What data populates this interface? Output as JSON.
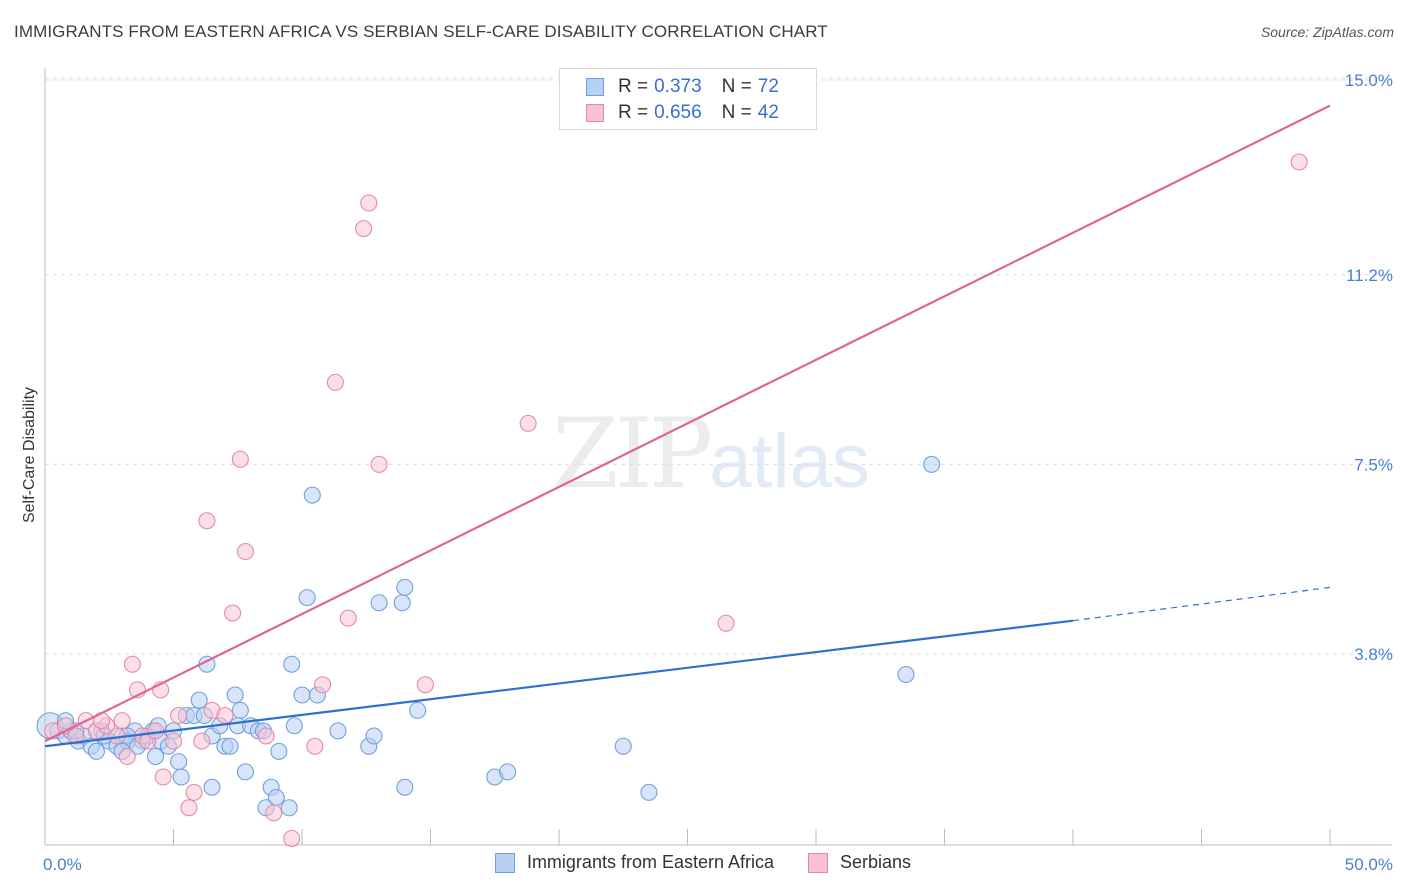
{
  "title": "IMMIGRANTS FROM EASTERN AFRICA VS SERBIAN SELF-CARE DISABILITY CORRELATION CHART",
  "source": "Source: ZipAtlas.com",
  "watermark": {
    "zip": "ZIP",
    "atlas": "atlas"
  },
  "legend_top": {
    "rows": [
      {
        "r_label": "R =",
        "r_value": "0.373",
        "n_label": "N =",
        "n_value": "72"
      },
      {
        "r_label": "R =",
        "r_value": "0.656",
        "n_label": "N =",
        "n_value": "42"
      }
    ]
  },
  "legend_bottom": [
    {
      "label": "Immigrants from Eastern Africa"
    },
    {
      "label": "Serbians"
    }
  ],
  "chart_data": {
    "type": "scatter",
    "title": "IMMIGRANTS FROM EASTERN AFRICA VS SERBIAN SELF-CARE DISABILITY CORRELATION CHART",
    "xlabel": "",
    "ylabel": "Self-Care Disability",
    "xlim": [
      0,
      50
    ],
    "ylim": [
      0,
      15.5
    ],
    "x_tick_labels": [
      {
        "value": 0,
        "label": "0.0%"
      },
      {
        "value": 50,
        "label": "50.0%"
      }
    ],
    "y_tick_labels": [
      {
        "value": 3.8,
        "label": "3.8%"
      },
      {
        "value": 7.5,
        "label": "7.5%"
      },
      {
        "value": 11.2,
        "label": "11.2%"
      },
      {
        "value": 15.0,
        "label": "15.0%"
      }
    ],
    "grid": "horizontal dashed",
    "legend_position": "top-center",
    "series": [
      {
        "name": "Immigrants from Eastern Africa",
        "color": "#6f9fe0",
        "fill": "#b8d0f2",
        "R": 0.373,
        "N": 72,
        "trend": {
          "x0": 0,
          "y0": 2.0,
          "x1": 40,
          "y1": 4.45,
          "dashed_to_x": 50,
          "dashed_to_y": 5.1,
          "color": "#2e6fd0"
        },
        "points": [
          [
            0.2,
            2.4
          ],
          [
            0.5,
            2.3
          ],
          [
            0.8,
            2.2
          ],
          [
            1.0,
            2.3
          ],
          [
            1.3,
            2.1
          ],
          [
            1.5,
            2.2
          ],
          [
            1.8,
            2.0
          ],
          [
            2.0,
            1.9
          ],
          [
            2.2,
            2.3
          ],
          [
            2.5,
            2.1
          ],
          [
            2.8,
            2.0
          ],
          [
            3.0,
            2.2
          ],
          [
            3.2,
            2.1
          ],
          [
            3.5,
            2.3
          ],
          [
            3.2,
            2.2
          ],
          [
            3.8,
            2.1
          ],
          [
            3.6,
            2.0
          ],
          [
            4.0,
            2.2
          ],
          [
            4.2,
            2.3
          ],
          [
            4.5,
            2.1
          ],
          [
            4.8,
            2.0
          ],
          [
            4.3,
            1.8
          ],
          [
            5.0,
            2.3
          ],
          [
            5.2,
            1.7
          ],
          [
            5.5,
            2.6
          ],
          [
            5.8,
            2.6
          ],
          [
            5.3,
            1.4
          ],
          [
            6.0,
            2.9
          ],
          [
            6.2,
            2.6
          ],
          [
            6.3,
            3.6
          ],
          [
            6.5,
            2.2
          ],
          [
            6.8,
            2.4
          ],
          [
            7.0,
            2.0
          ],
          [
            7.2,
            2.0
          ],
          [
            7.4,
            3.0
          ],
          [
            7.6,
            2.7
          ],
          [
            7.5,
            2.4
          ],
          [
            7.8,
            1.5
          ],
          [
            8.0,
            2.4
          ],
          [
            8.3,
            2.3
          ],
          [
            8.5,
            2.3
          ],
          [
            8.6,
            0.8
          ],
          [
            8.8,
            1.2
          ],
          [
            9.0,
            1.0
          ],
          [
            9.1,
            1.9
          ],
          [
            9.5,
            0.8
          ],
          [
            9.7,
            2.4
          ],
          [
            9.6,
            3.6
          ],
          [
            10.0,
            3.0
          ],
          [
            10.2,
            4.9
          ],
          [
            10.4,
            6.9
          ],
          [
            10.6,
            3.0
          ],
          [
            11.4,
            2.3
          ],
          [
            12.6,
            2.0
          ],
          [
            12.8,
            2.2
          ],
          [
            13.0,
            4.8
          ],
          [
            13.9,
            4.8
          ],
          [
            14.0,
            5.1
          ],
          [
            14.0,
            1.2
          ],
          [
            14.5,
            2.7
          ],
          [
            17.5,
            1.4
          ],
          [
            18.0,
            1.5
          ],
          [
            22.5,
            2.0
          ],
          [
            23.5,
            1.1
          ],
          [
            33.5,
            3.4
          ],
          [
            34.5,
            7.5
          ],
          [
            3.0,
            1.9
          ],
          [
            4.4,
            2.4
          ],
          [
            2.3,
            2.2
          ],
          [
            6.5,
            1.2
          ],
          [
            1.2,
            2.3
          ],
          [
            0.8,
            2.5
          ]
        ]
      },
      {
        "name": "Serbians",
        "color": "#e48aa6",
        "fill": "#f7c3d3",
        "R": 0.656,
        "N": 42,
        "trend": {
          "x0": 0,
          "y0": 2.1,
          "x1": 50,
          "y1": 14.5,
          "color": "#e0668f"
        },
        "points": [
          [
            0.3,
            2.3
          ],
          [
            0.8,
            2.4
          ],
          [
            1.2,
            2.2
          ],
          [
            1.6,
            2.5
          ],
          [
            2.0,
            2.3
          ],
          [
            2.4,
            2.4
          ],
          [
            2.8,
            2.2
          ],
          [
            3.0,
            2.5
          ],
          [
            3.2,
            1.8
          ],
          [
            3.4,
            3.6
          ],
          [
            3.6,
            3.1
          ],
          [
            3.8,
            2.2
          ],
          [
            4.0,
            2.1
          ],
          [
            4.3,
            2.3
          ],
          [
            4.5,
            3.1
          ],
          [
            4.6,
            1.4
          ],
          [
            5.0,
            2.1
          ],
          [
            5.2,
            2.6
          ],
          [
            5.6,
            0.8
          ],
          [
            5.8,
            1.1
          ],
          [
            6.1,
            2.1
          ],
          [
            6.3,
            6.4
          ],
          [
            6.5,
            2.7
          ],
          [
            7.0,
            2.6
          ],
          [
            7.3,
            4.6
          ],
          [
            7.6,
            7.6
          ],
          [
            7.8,
            5.8
          ],
          [
            8.6,
            2.2
          ],
          [
            8.9,
            0.7
          ],
          [
            9.6,
            0.2
          ],
          [
            10.5,
            2.0
          ],
          [
            10.8,
            3.2
          ],
          [
            11.3,
            9.1
          ],
          [
            11.8,
            4.5
          ],
          [
            12.4,
            12.1
          ],
          [
            12.6,
            12.6
          ],
          [
            13.0,
            7.5
          ],
          [
            14.8,
            3.2
          ],
          [
            18.8,
            8.3
          ],
          [
            26.5,
            4.4
          ],
          [
            48.8,
            13.4
          ],
          [
            2.2,
            2.5
          ]
        ]
      }
    ]
  }
}
